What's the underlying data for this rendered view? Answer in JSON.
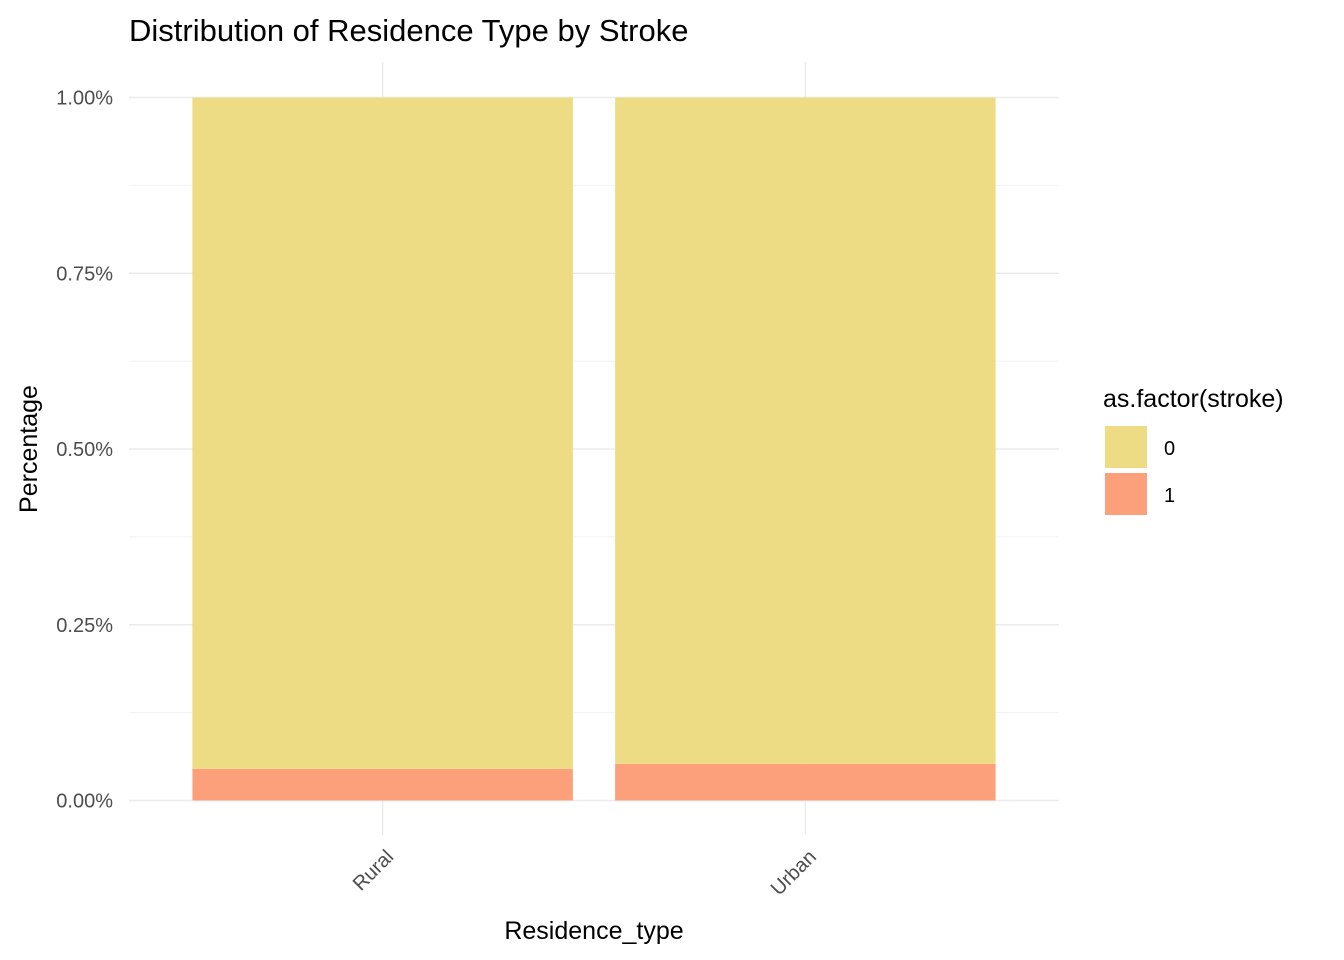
{
  "chart_data": {
    "type": "bar",
    "stacked": true,
    "title": "Distribution of Residence Type by Stroke",
    "xlabel": "Residence_type",
    "ylabel": "Percentage",
    "categories": [
      "Rural",
      "Urban"
    ],
    "ylim": [
      0,
      1
    ],
    "yticks": [
      0,
      0.25,
      0.5,
      0.75,
      1
    ],
    "ytick_labels": [
      "0.00%",
      "0.25%",
      "0.50%",
      "0.75%",
      "1.00%"
    ],
    "grid": true,
    "legend": {
      "title": "as.factor(stroke)",
      "position": "right"
    },
    "series": [
      {
        "name": "1",
        "values": [
          0.045,
          0.052
        ],
        "color": "#FCA07C"
      },
      {
        "name": "0",
        "values": [
          0.955,
          0.948
        ],
        "color": "#EEDC84"
      }
    ]
  }
}
